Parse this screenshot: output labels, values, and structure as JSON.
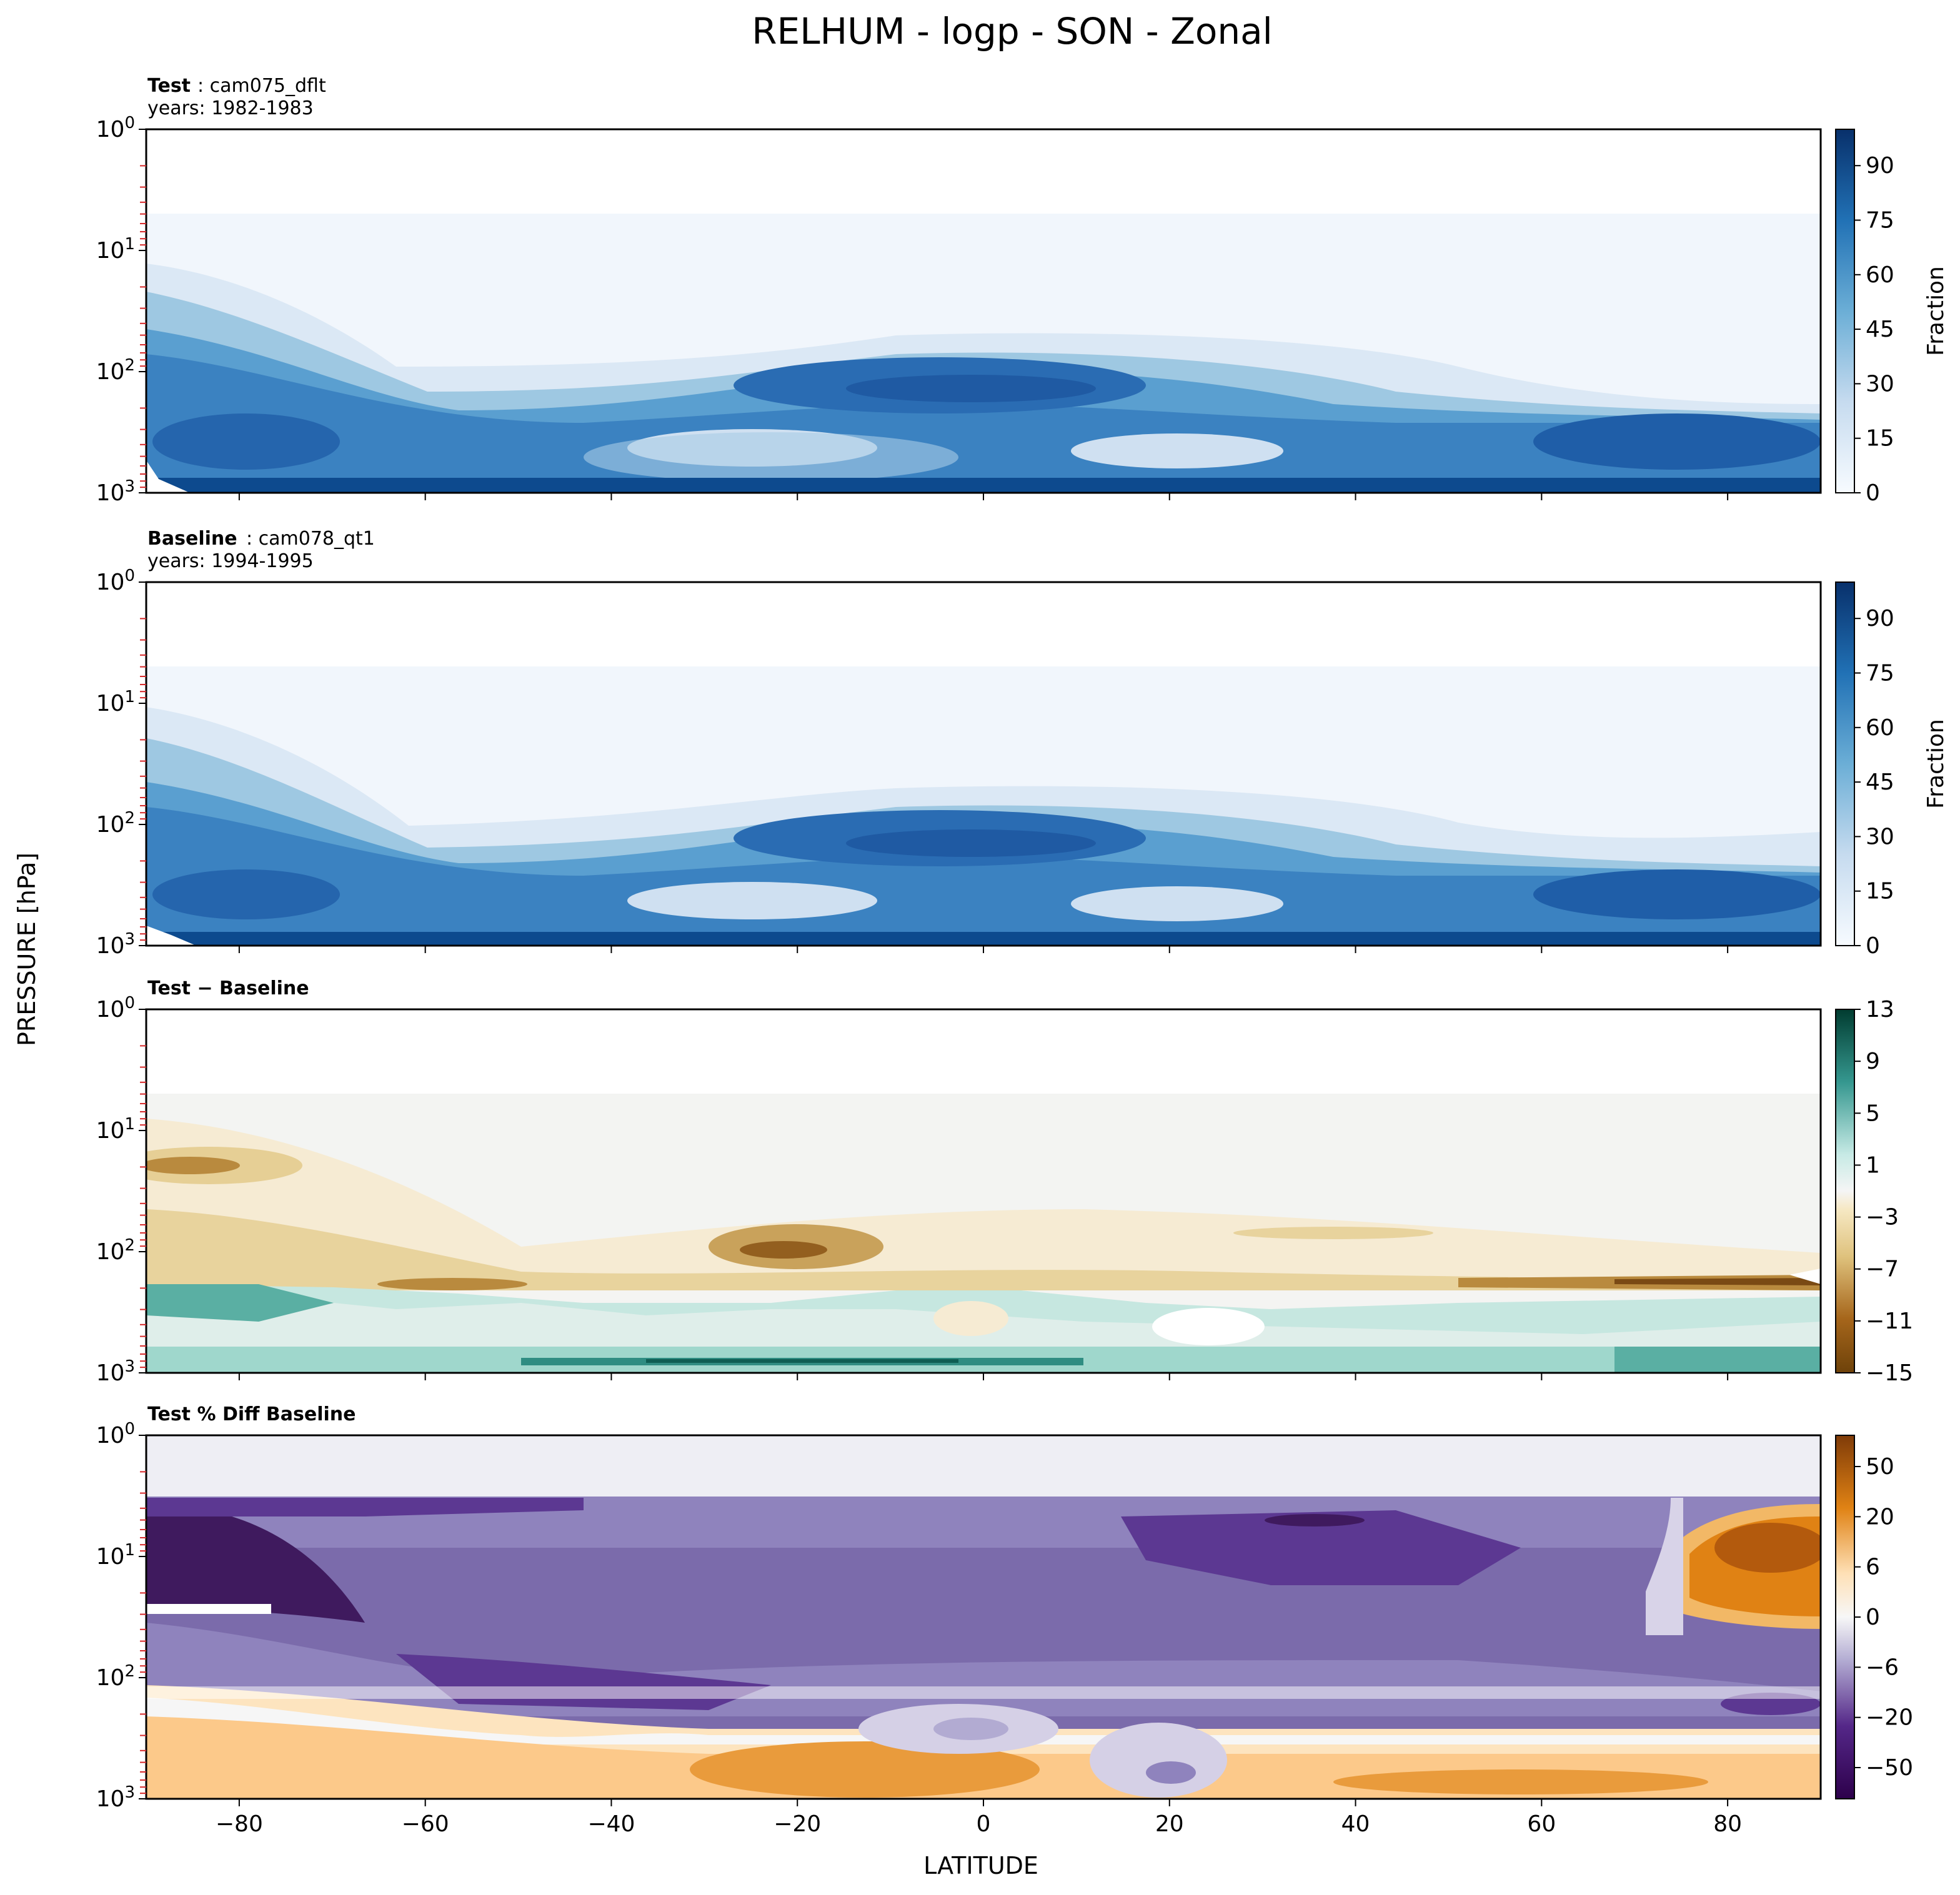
{
  "figure": {
    "title": "RELHUM - logp - SON - Zonal",
    "ylabel": "PRESSURE [hPa]",
    "xlabel": "LATITUDE"
  },
  "chart_data": [
    {
      "type": "heatmap",
      "panel": "test",
      "label_bold": "Test",
      "label_rest": ": cam075_dflt",
      "label_line2": "years: 1982-1983",
      "x_range": [
        -90,
        90
      ],
      "x_ticks": [
        "−80",
        "−60",
        "−40",
        "−20",
        "0",
        "20",
        "40",
        "60",
        "80"
      ],
      "y_range_hPa": [
        1000,
        1
      ],
      "y_scale": "log",
      "y_ticks": [
        "10^0",
        "10^1",
        "10^2",
        "10^3"
      ],
      "colormap": "Blues",
      "colorbar_label": "Fraction",
      "colorbar_ticks": [
        "0",
        "15",
        "30",
        "45",
        "60",
        "75",
        "90"
      ],
      "colorbar_range": [
        0,
        100
      ]
    },
    {
      "type": "heatmap",
      "panel": "baseline",
      "label_bold": "Baseline",
      "label_rest": ": cam078_qt1",
      "label_line2": "years: 1994-1995",
      "x_range": [
        -90,
        90
      ],
      "y_range_hPa": [
        1000,
        1
      ],
      "y_scale": "log",
      "colormap": "Blues",
      "colorbar_label": "Fraction",
      "colorbar_ticks": [
        "0",
        "15",
        "30",
        "45",
        "60",
        "75",
        "90"
      ],
      "colorbar_range": [
        0,
        100
      ]
    },
    {
      "type": "heatmap",
      "panel": "difference",
      "label_bold": "Test − Baseline",
      "x_range": [
        -90,
        90
      ],
      "y_range_hPa": [
        1000,
        1
      ],
      "y_scale": "log",
      "colormap": "BrBG",
      "colorbar_ticks": [
        "13",
        "9",
        "5",
        "1",
        "−3",
        "−7",
        "−11",
        "−15"
      ],
      "colorbar_range": [
        -15,
        13
      ]
    },
    {
      "type": "heatmap",
      "panel": "percent_difference",
      "label_bold": "Test % Diff Baseline",
      "x_range": [
        -90,
        90
      ],
      "y_range_hPa": [
        1000,
        1
      ],
      "y_scale": "log",
      "colormap": "PuOr",
      "colorbar_ticks": [
        "50",
        "20",
        "6",
        "0",
        "−6",
        "−20",
        "−50"
      ]
    }
  ]
}
